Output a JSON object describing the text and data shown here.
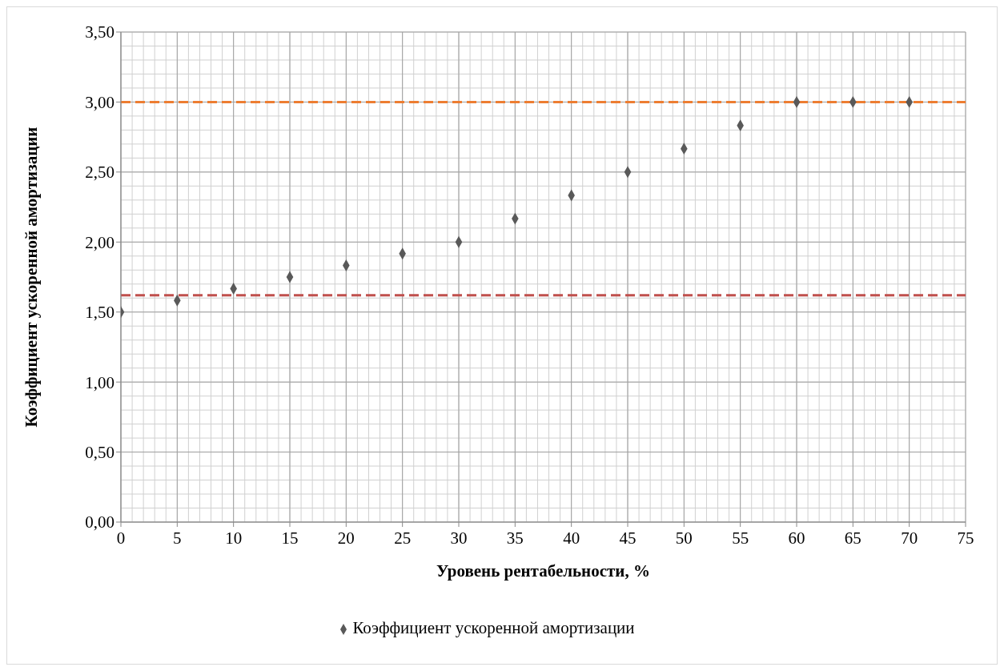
{
  "chart_data": {
    "type": "scatter",
    "xlabel": "Уровень рентабельности, %",
    "ylabel": "Коэффициент ускоренной амортизации",
    "x": [
      0,
      5,
      10,
      15,
      20,
      25,
      30,
      35,
      40,
      45,
      50,
      55,
      60,
      65,
      70
    ],
    "series": [
      {
        "name": "Коэффициент ускоренной амортизации",
        "color": "#595959",
        "values": [
          1.5,
          1.583,
          1.667,
          1.75,
          1.833,
          1.917,
          2.0,
          2.167,
          2.333,
          2.5,
          2.667,
          2.833,
          3.0,
          3.0,
          3.0
        ]
      }
    ],
    "xlim": [
      0,
      75
    ],
    "xticks": [
      0,
      5,
      10,
      15,
      20,
      25,
      30,
      35,
      40,
      45,
      50,
      55,
      60,
      65,
      70,
      75
    ],
    "ylim": [
      0,
      3.5
    ],
    "yticks": [
      {
        "value": 0,
        "label": "0,00"
      },
      {
        "value": 0.5,
        "label": "0,50"
      },
      {
        "value": 1,
        "label": "1,00"
      },
      {
        "value": 1.5,
        "label": "1,50"
      },
      {
        "value": 2,
        "label": "2,00"
      },
      {
        "value": 2.5,
        "label": "2,50"
      },
      {
        "value": 3,
        "label": "3,00"
      },
      {
        "value": 3.5,
        "label": "3,50"
      }
    ],
    "ref_lines": [
      {
        "axis": "y",
        "value": 3.0,
        "label": null,
        "color": "#ed7d31",
        "line_style": "dashed"
      },
      {
        "axis": "y",
        "value": 1.62,
        "label": null,
        "color": "#c0504d",
        "line_style": "dashed"
      }
    ],
    "grid": true,
    "legend": "bottom",
    "marker": "diamond"
  }
}
